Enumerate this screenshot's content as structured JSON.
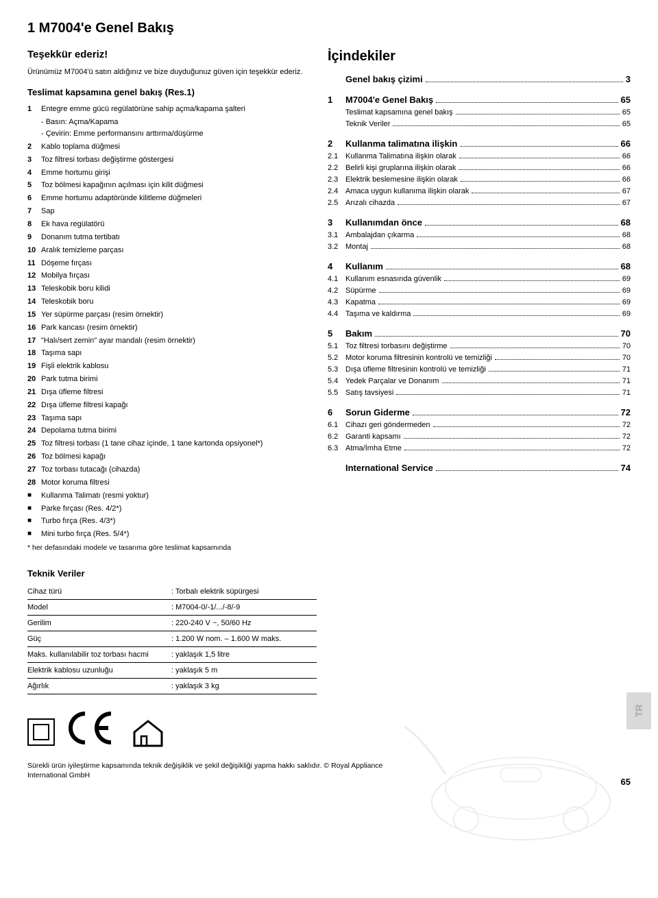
{
  "title": "1 M7004'e Genel Bakış",
  "thanks_h": "Teşekkür ederiz!",
  "thanks_body": "Ürünümüz M7004'ü satın aldığınız ve bize duyduğunuz güven için teşekkür ederiz.",
  "scope_h": "Teslimat kapsamına genel bakış (Res.1)",
  "items": [
    {
      "n": "1",
      "t": "Entegre emme gücü regülatörüne sahip açma/kapama şalteri"
    },
    {
      "n": "",
      "t": "",
      "subs": [
        "- Basın: Açma/Kapama",
        "- Çevirin: Emme performansını arttırma/düşürme"
      ]
    },
    {
      "n": "2",
      "t": "Kablo toplama düğmesi"
    },
    {
      "n": "3",
      "t": "Toz filtresi torbası değiştirme göstergesi"
    },
    {
      "n": "4",
      "t": "Emme hortumu girişi"
    },
    {
      "n": "5",
      "t": "Toz bölmesi kapağının açılması için kilit düğmesi"
    },
    {
      "n": "6",
      "t": "Emme hortumu adaptöründe kilitleme düğmeleri"
    },
    {
      "n": "7",
      "t": "Sap"
    },
    {
      "n": "8",
      "t": "Ek hava regülatörü"
    },
    {
      "n": "9",
      "t": "Donanım tutma tertibatı"
    },
    {
      "n": "10",
      "t": "Aralık temizleme parçası"
    },
    {
      "n": "11",
      "t": "Döşeme fırçası"
    },
    {
      "n": "12",
      "t": "Mobilya fırçası"
    },
    {
      "n": "13",
      "t": "Teleskobik boru kilidi"
    },
    {
      "n": "14",
      "t": "Teleskobik boru"
    },
    {
      "n": "15",
      "t": "Yer süpürme parçası (resim örnektir)"
    },
    {
      "n": "16",
      "t": "Park kancası (resim örnektir)"
    },
    {
      "n": "17",
      "t": "\"Halı/sert zemin\" ayar mandalı (resim örnektir)"
    },
    {
      "n": "18",
      "t": "Taşıma sapı"
    },
    {
      "n": "19",
      "t": "Fişli elektrik kablosu"
    },
    {
      "n": "20",
      "t": "Park tutma birimi"
    },
    {
      "n": "21",
      "t": "Dışa üfleme filtresi"
    },
    {
      "n": "22",
      "t": "Dışa üfleme filtresi kapağı"
    },
    {
      "n": "23",
      "t": "Taşıma sapı"
    },
    {
      "n": "24",
      "t": "Depolama tutma birimi"
    },
    {
      "n": "25",
      "t": "Toz filtresi torbası (1 tane cihaz içinde, 1 tane kartonda opsiyonel*)"
    },
    {
      "n": "26",
      "t": "Toz bölmesi kapağı"
    },
    {
      "n": "27",
      "t": "Toz torbası tutacağı (cihazda)"
    },
    {
      "n": "28",
      "t": "Motor koruma filtresi"
    }
  ],
  "sqitems": [
    "Kullanma Talimatı (resmi yoktur)",
    "Parke fırçası (Res. 4/2*)",
    "Turbo fırça (Res. 4/3*)",
    "Mini turbo fırça (Res. 5/4*)"
  ],
  "footnote": "* her defasındaki modele ve tasarıma göre teslimat kapsamında",
  "toc_h": "İçindekiler",
  "toc": [
    {
      "type": "indent",
      "t": "Genel bakış çizimi",
      "p": "3"
    },
    {
      "type": "gap"
    },
    {
      "type": "main",
      "n": "1",
      "t": "M7004'e Genel Bakış",
      "p": "65"
    },
    {
      "type": "sub2",
      "t": "Teslimat kapsamına genel bakış",
      "p": "65"
    },
    {
      "type": "sub2",
      "t": "Teknik Veriler",
      "p": "65"
    },
    {
      "type": "gap"
    },
    {
      "type": "main",
      "n": "2",
      "t": "Kullanma talimatına ilişkin",
      "p": "66"
    },
    {
      "type": "sub",
      "n": "2.1",
      "t": "Kullanma Talimatına ilişkin olarak",
      "p": "66"
    },
    {
      "type": "sub",
      "n": "2.2",
      "t": "Belirli kişi gruplarına ilişkin olarak",
      "p": "66"
    },
    {
      "type": "sub",
      "n": "2.3",
      "t": "Elektrik beslemesine ilişkin olarak",
      "p": "66"
    },
    {
      "type": "sub",
      "n": "2.4",
      "t": "Amaca uygun kullanıma ilişkin olarak",
      "p": "67"
    },
    {
      "type": "sub",
      "n": "2.5",
      "t": "Arızalı cihazda",
      "p": "67"
    },
    {
      "type": "gap"
    },
    {
      "type": "main",
      "n": "3",
      "t": "Kullanımdan önce",
      "p": "68"
    },
    {
      "type": "sub",
      "n": "3.1",
      "t": "Ambalajdan çıkarma",
      "p": "68"
    },
    {
      "type": "sub",
      "n": "3.2",
      "t": "Montaj",
      "p": "68"
    },
    {
      "type": "gap"
    },
    {
      "type": "main",
      "n": "4",
      "t": "Kullanım",
      "p": "68"
    },
    {
      "type": "sub",
      "n": "4.1",
      "t": "Kullanım esnasında güvenlik",
      "p": "69"
    },
    {
      "type": "sub",
      "n": "4.2",
      "t": "Süpürme",
      "p": "69"
    },
    {
      "type": "sub",
      "n": "4.3",
      "t": "Kapatma",
      "p": "69"
    },
    {
      "type": "sub",
      "n": "4.4",
      "t": "Taşıma ve kaldırma",
      "p": "69"
    },
    {
      "type": "gap"
    },
    {
      "type": "main",
      "n": "5",
      "t": "Bakım",
      "p": "70"
    },
    {
      "type": "sub",
      "n": "5.1",
      "t": "Toz filtresi torbasını değiştirme",
      "p": "70"
    },
    {
      "type": "sub",
      "n": "5.2",
      "t": "Motor koruma filtresinin kontrolü ve temizliği",
      "p": "70"
    },
    {
      "type": "sub",
      "n": "5.3",
      "t": "Dışa üfleme filtresinin kontrolü ve temizliği",
      "p": "71"
    },
    {
      "type": "sub",
      "n": "5.4",
      "t": "Yedek Parçalar ve Donanım",
      "p": "71"
    },
    {
      "type": "sub",
      "n": "5.5",
      "t": "Satış tavsiyesi",
      "p": "71"
    },
    {
      "type": "gap"
    },
    {
      "type": "main",
      "n": "6",
      "t": "Sorun Giderme",
      "p": "72"
    },
    {
      "type": "sub",
      "n": "6.1",
      "t": "Cihazı geri göndermeden",
      "p": "72"
    },
    {
      "type": "sub",
      "n": "6.2",
      "t": "Garanti kapsamı",
      "p": "72"
    },
    {
      "type": "sub",
      "n": "6.3",
      "t": "Atma/İmha Etme",
      "p": "72"
    },
    {
      "type": "gap"
    },
    {
      "type": "indent",
      "t": "International Service",
      "p": "74"
    }
  ],
  "tech_h": "Teknik Veriler",
  "tech": [
    {
      "lab": "Cihaz türü",
      "val": "Torbalı elektrik süpürgesi"
    },
    {
      "lab": "Model",
      "val": "M7004-0/-1/.../-8/-9"
    },
    {
      "lab": "Gerilim",
      "val": "220-240 V ~, 50/60 Hz"
    },
    {
      "lab": "Güç",
      "val": "1.200 W nom. – 1.600 W maks."
    },
    {
      "lab": "Maks. kullanılabilir toz torbası hacmi",
      "val": "yaklaşık 1,5 litre"
    },
    {
      "lab": "Elektrik kablosu uzunluğu",
      "val": "yaklaşık 5 m"
    },
    {
      "lab": "Ağırlık",
      "val": "yaklaşık 3 kg"
    }
  ],
  "bottom_note": "Sürekli ürün iyileştirme kapsamında teknik değişiklik ve şekil değişikliği yapma hakkı saklıdır. © Royal Appliance International GmbH",
  "page_number": "65",
  "tr_label": "TR"
}
